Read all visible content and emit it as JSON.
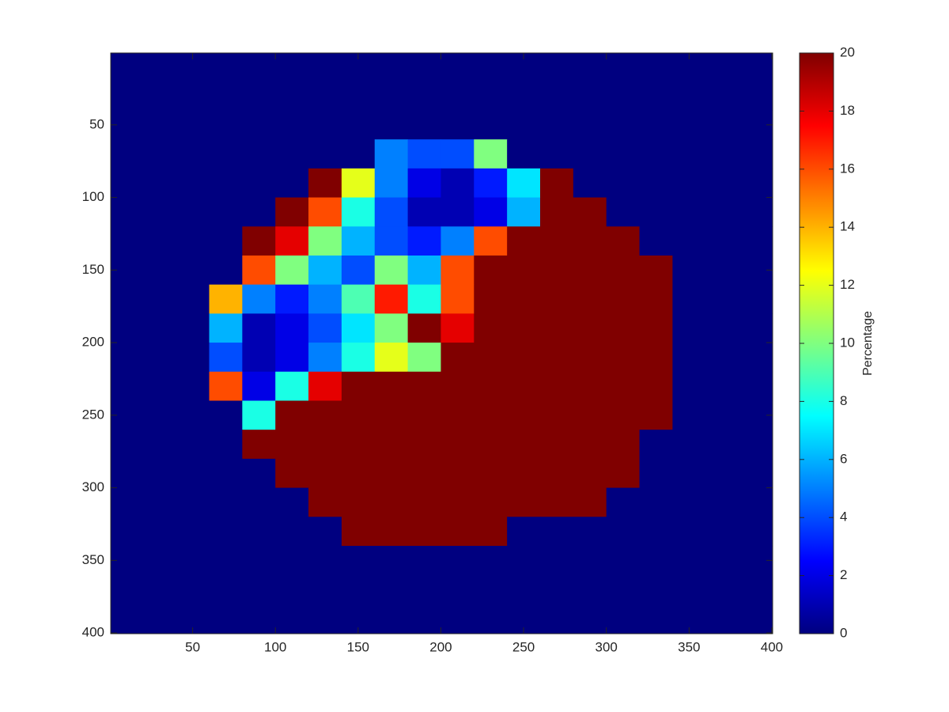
{
  "chart_data": {
    "type": "heatmap",
    "colormap": "jet",
    "ydir": "reverse",
    "x": [
      10,
      30,
      50,
      70,
      90,
      110,
      130,
      150,
      170,
      190,
      210,
      230,
      250,
      270,
      290,
      310,
      330,
      350,
      370,
      390
    ],
    "y": [
      10,
      30,
      50,
      70,
      90,
      110,
      130,
      150,
      170,
      190,
      210,
      230,
      250,
      270,
      290,
      310,
      330,
      350,
      370,
      390
    ],
    "z": [
      [
        0,
        0,
        0,
        0,
        0,
        0,
        0,
        0,
        0,
        0,
        0,
        0,
        0,
        0,
        0,
        0,
        0,
        0,
        0,
        0
      ],
      [
        0,
        0,
        0,
        0,
        0,
        0,
        0,
        0,
        0,
        0,
        0,
        0,
        0,
        0,
        0,
        0,
        0,
        0,
        0,
        0
      ],
      [
        0,
        0,
        0,
        0,
        0,
        0,
        0,
        0,
        0,
        0,
        0,
        0,
        0,
        0,
        0,
        0,
        0,
        0,
        0,
        0
      ],
      [
        0,
        0,
        0,
        0,
        0,
        0,
        0,
        0,
        5,
        4,
        4,
        10,
        0,
        0,
        0,
        0,
        0,
        0,
        0,
        0
      ],
      [
        0,
        0,
        0,
        0,
        0,
        0,
        20,
        12,
        5,
        2,
        1,
        3,
        7,
        20,
        0,
        0,
        0,
        0,
        0,
        0
      ],
      [
        0,
        0,
        0,
        0,
        0,
        20,
        16,
        8,
        4,
        1,
        1,
        2,
        6,
        20,
        20,
        0,
        0,
        0,
        0,
        0
      ],
      [
        0,
        0,
        0,
        0,
        20,
        18,
        10,
        6,
        4,
        3,
        5,
        16,
        20,
        20,
        20,
        20,
        0,
        0,
        0,
        0
      ],
      [
        0,
        0,
        0,
        0,
        16,
        10,
        6,
        4,
        10,
        6,
        16,
        20,
        20,
        20,
        20,
        20,
        20,
        0,
        0,
        0
      ],
      [
        0,
        0,
        0,
        14,
        5,
        3,
        5,
        9,
        17,
        8,
        16,
        20,
        20,
        20,
        20,
        20,
        20,
        0,
        0,
        0
      ],
      [
        0,
        0,
        0,
        6,
        1,
        2,
        4,
        7,
        10,
        20,
        18,
        20,
        20,
        20,
        20,
        20,
        20,
        0,
        0,
        0
      ],
      [
        0,
        0,
        0,
        4,
        1,
        2,
        5,
        8,
        12,
        10,
        20,
        20,
        20,
        20,
        20,
        20,
        20,
        0,
        0,
        0
      ],
      [
        0,
        0,
        0,
        16,
        2,
        8,
        18,
        20,
        20,
        20,
        20,
        20,
        20,
        20,
        20,
        20,
        20,
        0,
        0,
        0
      ],
      [
        0,
        0,
        0,
        0,
        8,
        20,
        20,
        20,
        20,
        20,
        20,
        20,
        20,
        20,
        20,
        20,
        20,
        0,
        0,
        0
      ],
      [
        0,
        0,
        0,
        0,
        20,
        20,
        20,
        20,
        20,
        20,
        20,
        20,
        20,
        20,
        20,
        20,
        0,
        0,
        0,
        0
      ],
      [
        0,
        0,
        0,
        0,
        0,
        20,
        20,
        20,
        20,
        20,
        20,
        20,
        20,
        20,
        20,
        20,
        0,
        0,
        0,
        0
      ],
      [
        0,
        0,
        0,
        0,
        0,
        0,
        20,
        20,
        20,
        20,
        20,
        20,
        20,
        20,
        20,
        0,
        0,
        0,
        0,
        0
      ],
      [
        0,
        0,
        0,
        0,
        0,
        0,
        0,
        20,
        20,
        20,
        20,
        20,
        0,
        0,
        0,
        0,
        0,
        0,
        0,
        0
      ],
      [
        0,
        0,
        0,
        0,
        0,
        0,
        0,
        0,
        0,
        0,
        0,
        0,
        0,
        0,
        0,
        0,
        0,
        0,
        0,
        0
      ],
      [
        0,
        0,
        0,
        0,
        0,
        0,
        0,
        0,
        0,
        0,
        0,
        0,
        0,
        0,
        0,
        0,
        0,
        0,
        0,
        0
      ],
      [
        0,
        0,
        0,
        0,
        0,
        0,
        0,
        0,
        0,
        0,
        0,
        0,
        0,
        0,
        0,
        0,
        0,
        0,
        0,
        0
      ]
    ],
    "xlim": [
      0.5,
      400.5
    ],
    "ylim": [
      0.5,
      400.5
    ],
    "xticks": [
      50,
      100,
      150,
      200,
      250,
      300,
      350,
      400
    ],
    "yticks": [
      50,
      100,
      150,
      200,
      250,
      300,
      350,
      400
    ],
    "clim": [
      0,
      20
    ],
    "cticks": [
      0,
      2,
      4,
      6,
      8,
      10,
      12,
      14,
      16,
      18,
      20
    ],
    "colorbar_label": "Percentage"
  }
}
